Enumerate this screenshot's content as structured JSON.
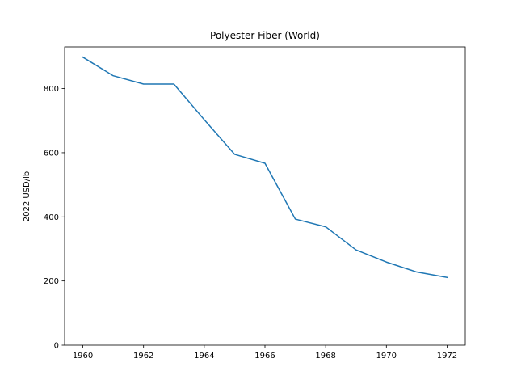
{
  "chart_data": {
    "type": "line",
    "title": "Polyester Fiber (World)",
    "xlabel": "",
    "ylabel": "2022 USD/lb",
    "xlim": [
      1959.4,
      1972.6
    ],
    "ylim": [
      0,
      930
    ],
    "xticks": [
      1960,
      1962,
      1964,
      1966,
      1968,
      1970,
      1972
    ],
    "yticks": [
      0,
      200,
      400,
      600,
      800
    ],
    "grid": false,
    "series": [
      {
        "name": "Polyester Fiber (World)",
        "color": "#1f77b4",
        "x": [
          1960,
          1961,
          1962,
          1963,
          1964,
          1965,
          1966,
          1967,
          1968,
          1969,
          1970,
          1971,
          1972
        ],
        "y": [
          898,
          840,
          814,
          814,
          703,
          595,
          567,
          393,
          369,
          297,
          259,
          228,
          211
        ]
      }
    ]
  }
}
